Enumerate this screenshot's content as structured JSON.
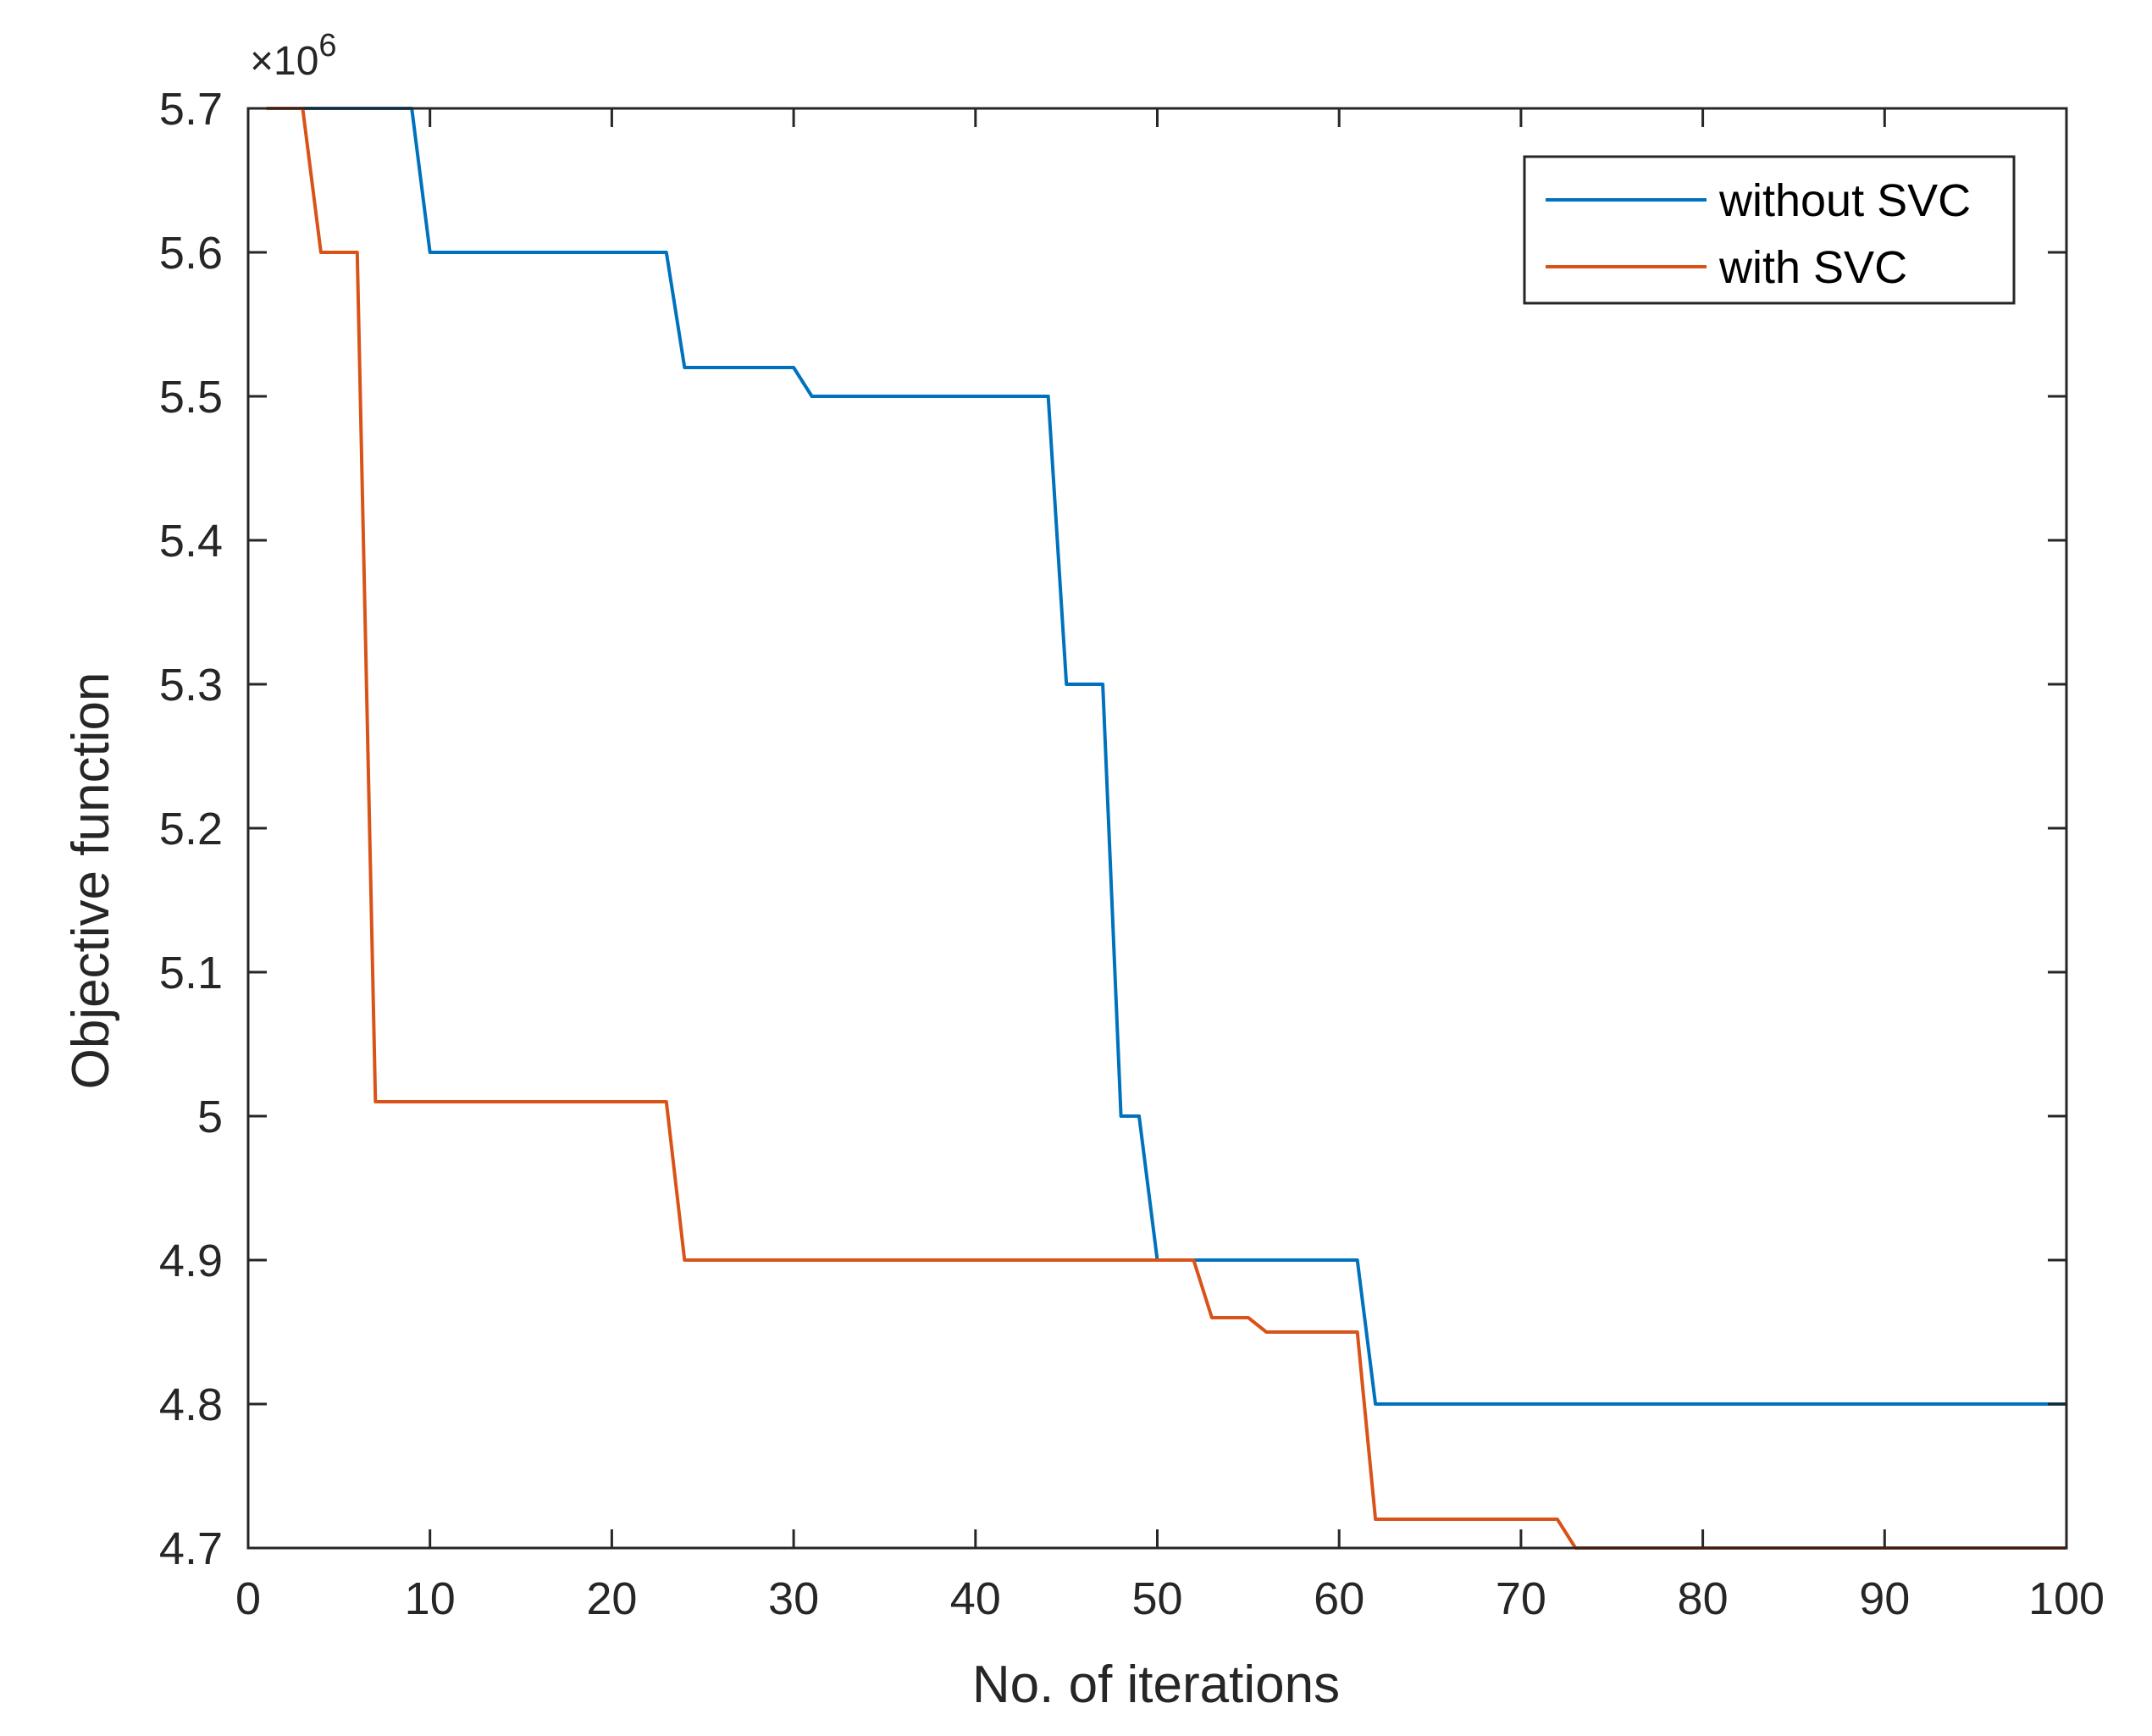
{
  "chart_data": {
    "type": "line",
    "title": "",
    "xlabel": "No. of iterations",
    "ylabel": "Objective function",
    "xlim": [
      0,
      100
    ],
    "ylim": [
      4.7,
      5.7
    ],
    "xticks": [
      0,
      10,
      20,
      30,
      40,
      50,
      60,
      70,
      80,
      90,
      100
    ],
    "yticks": [
      4.7,
      4.8,
      4.9,
      5,
      5.1,
      5.2,
      5.3,
      5.4,
      5.5,
      5.6,
      5.7
    ],
    "ytick_labels": [
      "4.7",
      "4.8",
      "4.9",
      "5",
      "5.1",
      "5.2",
      "5.3",
      "5.4",
      "5.5",
      "5.6",
      "5.7"
    ],
    "y_exponent": {
      "base": "×10",
      "power": "6"
    },
    "grid": false,
    "legend_position": "top-right",
    "series": [
      {
        "name": "without SVC",
        "color": "#0072BD",
        "x": [
          1,
          9,
          10,
          23,
          24,
          30,
          31,
          44,
          45,
          47,
          48,
          49,
          50,
          61,
          62,
          100
        ],
        "y": [
          5.7,
          5.7,
          5.6,
          5.6,
          5.52,
          5.52,
          5.5,
          5.5,
          5.3,
          5.3,
          5.0,
          5.0,
          4.9,
          4.9,
          4.8,
          4.8
        ]
      },
      {
        "name": "with SVC",
        "color": "#D95319",
        "x": [
          1,
          3,
          4,
          6,
          7,
          23,
          24,
          52,
          53,
          55,
          56,
          61,
          62,
          72,
          73,
          100
        ],
        "y": [
          5.7,
          5.7,
          5.6,
          5.6,
          5.01,
          5.01,
          4.9,
          4.9,
          4.86,
          4.86,
          4.85,
          4.85,
          4.72,
          4.72,
          4.7,
          4.7
        ]
      }
    ]
  }
}
